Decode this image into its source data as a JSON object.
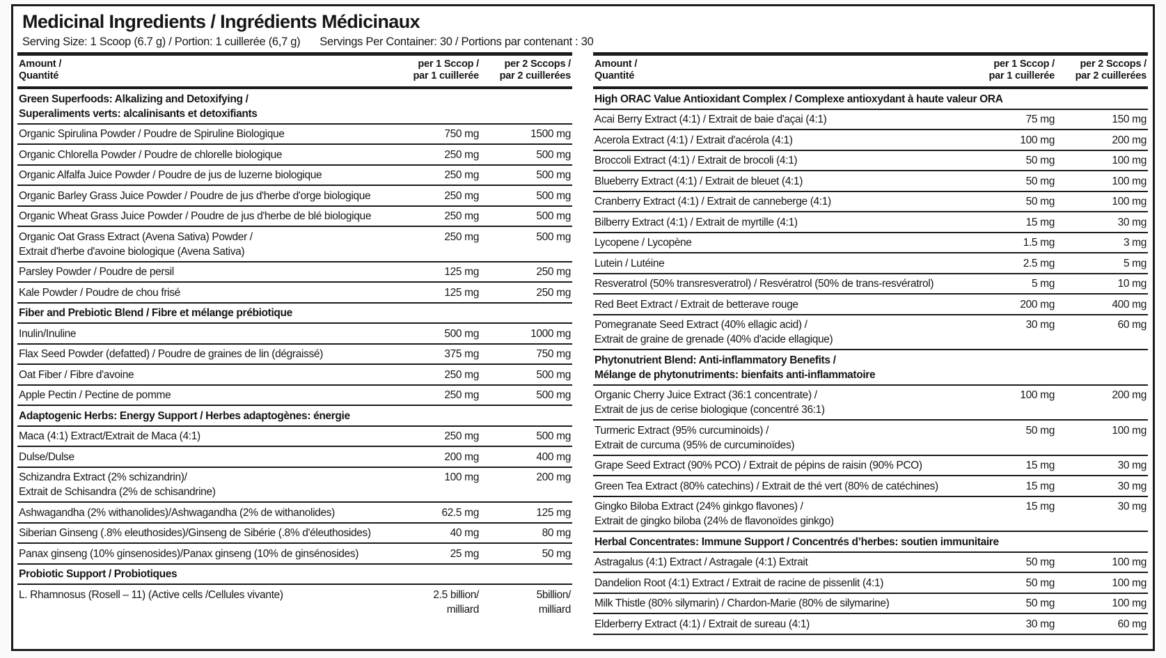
{
  "label": {
    "title": "Medicinal Ingredients / Ingrédients Médicinaux",
    "serving_size": "Serving Size: 1 Scoop (6.7 g) / Portion: 1 cuillerée (6,7 g)",
    "servings_per_container": "Servings Per Container: 30 / Portions par contenant : 30"
  },
  "column_headers": {
    "amount": [
      "Amount /",
      "Quantité"
    ],
    "per1": [
      "per 1 Sccop /",
      "par 1 cuillerée"
    ],
    "per2": [
      "per 2 Sccops /",
      "par 2 cuillerées"
    ]
  },
  "tables": {
    "left": [
      {
        "type": "section",
        "lines": [
          "Green Superfoods: Alkalizing and Detoxifying /",
          "Superaliments verts: alcalinisants et detoxifiants"
        ]
      },
      {
        "type": "ingredient",
        "lines": [
          "Organic Spirulina Powder / Poudre de Spiruline Biologique"
        ],
        "per1": [
          "750 mg"
        ],
        "per2": [
          "1500 mg"
        ]
      },
      {
        "type": "ingredient",
        "lines": [
          "Organic Chlorella Powder / Poudre de chlorelle biologique"
        ],
        "per1": [
          "250 mg"
        ],
        "per2": [
          "500 mg"
        ]
      },
      {
        "type": "ingredient",
        "lines": [
          "Organic Alfalfa Juice Powder / Poudre de jus de luzerne biologique"
        ],
        "per1": [
          "250 mg"
        ],
        "per2": [
          "500 mg"
        ]
      },
      {
        "type": "ingredient",
        "lines": [
          "Organic Barley Grass Juice Powder / Poudre de jus d'herbe d'orge biologique"
        ],
        "per1": [
          "250 mg"
        ],
        "per2": [
          "500 mg"
        ]
      },
      {
        "type": "ingredient",
        "lines": [
          "Organic Wheat Grass Juice Powder / Poudre de jus d'herbe de blé biologique"
        ],
        "per1": [
          "250 mg"
        ],
        "per2": [
          "500 mg"
        ]
      },
      {
        "type": "ingredient",
        "lines": [
          "Organic Oat Grass Extract (Avena Sativa) Powder /",
          "Extrait d'herbe d'avoine biologique (Avena Sativa)"
        ],
        "per1": [
          "250 mg"
        ],
        "per2": [
          "500 mg"
        ]
      },
      {
        "type": "ingredient",
        "lines": [
          "Parsley Powder / Poudre de persil"
        ],
        "per1": [
          "125 mg"
        ],
        "per2": [
          "250 mg"
        ]
      },
      {
        "type": "ingredient",
        "lines": [
          "Kale Powder / Poudre de chou frisé"
        ],
        "per1": [
          "125 mg"
        ],
        "per2": [
          "250 mg"
        ]
      },
      {
        "type": "section",
        "lines": [
          "Fiber and Prebiotic Blend / Fibre et mélange prébiotique"
        ]
      },
      {
        "type": "ingredient",
        "lines": [
          "Inulin/Inuline"
        ],
        "per1": [
          "500 mg"
        ],
        "per2": [
          "1000 mg"
        ]
      },
      {
        "type": "ingredient",
        "lines": [
          "Flax Seed Powder (defatted) / Poudre de graines de lin (dégraissé)"
        ],
        "per1": [
          "375 mg"
        ],
        "per2": [
          "750 mg"
        ]
      },
      {
        "type": "ingredient",
        "lines": [
          "Oat Fiber / Fibre d'avoine"
        ],
        "per1": [
          "250 mg"
        ],
        "per2": [
          "500 mg"
        ]
      },
      {
        "type": "ingredient",
        "lines": [
          "Apple Pectin / Pectine de pomme"
        ],
        "per1": [
          "250 mg"
        ],
        "per2": [
          "500 mg"
        ]
      },
      {
        "type": "section",
        "lines": [
          "Adaptogenic Herbs: Energy Support / Herbes adaptogènes: énergie"
        ]
      },
      {
        "type": "ingredient",
        "lines": [
          "Maca (4:1) Extract/Extrait de Maca (4:1)"
        ],
        "per1": [
          "250 mg"
        ],
        "per2": [
          "500 mg"
        ]
      },
      {
        "type": "ingredient",
        "lines": [
          "Dulse/Dulse"
        ],
        "per1": [
          "200 mg"
        ],
        "per2": [
          "400 mg"
        ]
      },
      {
        "type": "ingredient",
        "lines": [
          "Schizandra Extract (2% schizandrin)/",
          "Extrait de Schisandra (2% de schisandrine)"
        ],
        "per1": [
          "100 mg"
        ],
        "per2": [
          "200 mg"
        ]
      },
      {
        "type": "ingredient",
        "lines": [
          "Ashwagandha (2% withanolides)/Ashwagandha (2% de withanolides)"
        ],
        "per1": [
          "62.5 mg"
        ],
        "per2": [
          "125 mg"
        ]
      },
      {
        "type": "ingredient",
        "lines": [
          "Siberian Ginseng (.8% eleuthosides)/Ginseng de Sibérie (.8% d'éleuthosides)"
        ],
        "per1": [
          "40 mg"
        ],
        "per2": [
          "80 mg"
        ]
      },
      {
        "type": "ingredient",
        "lines": [
          "Panax ginseng (10% ginsenosides)/Panax ginseng (10% de ginsénosides)"
        ],
        "per1": [
          "25 mg"
        ],
        "per2": [
          "50 mg"
        ]
      },
      {
        "type": "section",
        "lines": [
          "Probiotic Support / Probiotiques"
        ]
      },
      {
        "type": "ingredient",
        "lines": [
          "L. Rhamnosus (Rosell – 11) (Active cells /Cellules vivante)"
        ],
        "per1": [
          "2.5 billion/",
          "milliard"
        ],
        "per2": [
          "5billion/",
          "milliard"
        ]
      }
    ],
    "right": [
      {
        "type": "section",
        "lines": [
          "High ORAC Value Antioxidant Complex / Complexe antioxydant à haute valeur ORA"
        ]
      },
      {
        "type": "ingredient",
        "lines": [
          "Acai Berry Extract (4:1) / Extrait de baie d'açai (4:1)"
        ],
        "per1": [
          "75 mg"
        ],
        "per2": [
          "150 mg"
        ]
      },
      {
        "type": "ingredient",
        "lines": [
          "Acerola Extract (4:1) / Extrait d'acérola (4:1)"
        ],
        "per1": [
          "100 mg"
        ],
        "per2": [
          "200 mg"
        ]
      },
      {
        "type": "ingredient",
        "lines": [
          "Broccoli Extract (4:1) / Extrait de brocoli (4:1)"
        ],
        "per1": [
          "50 mg"
        ],
        "per2": [
          "100 mg"
        ]
      },
      {
        "type": "ingredient",
        "lines": [
          "Blueberry Extract (4:1) / Extrait de bleuet (4:1)"
        ],
        "per1": [
          "50 mg"
        ],
        "per2": [
          "100 mg"
        ]
      },
      {
        "type": "ingredient",
        "lines": [
          "Cranberry Extract (4:1) / Extrait de canneberge (4:1)"
        ],
        "per1": [
          "50 mg"
        ],
        "per2": [
          "100 mg"
        ]
      },
      {
        "type": "ingredient",
        "lines": [
          "Bilberry Extract (4:1) / Extrait de myrtille (4:1)"
        ],
        "per1": [
          "15 mg"
        ],
        "per2": [
          "30 mg"
        ]
      },
      {
        "type": "ingredient",
        "lines": [
          "Lycopene / Lycopène"
        ],
        "per1": [
          "1.5 mg"
        ],
        "per2": [
          "3 mg"
        ]
      },
      {
        "type": "ingredient",
        "lines": [
          "Lutein / Lutéine"
        ],
        "per1": [
          "2.5 mg"
        ],
        "per2": [
          "5 mg"
        ]
      },
      {
        "type": "ingredient",
        "lines": [
          "Resveratrol (50% transresveratrol) / Resvératrol (50% de trans-resvératrol)"
        ],
        "per1": [
          "5 mg"
        ],
        "per2": [
          "10 mg"
        ]
      },
      {
        "type": "ingredient",
        "lines": [
          "Red Beet Extract / Extrait de betterave rouge"
        ],
        "per1": [
          "200 mg"
        ],
        "per2": [
          "400 mg"
        ]
      },
      {
        "type": "ingredient",
        "lines": [
          "Pomegranate Seed Extract (40% ellagic acid) /",
          "Extrait de graine de grenade (40% d'acide ellagique)"
        ],
        "per1": [
          "30 mg"
        ],
        "per2": [
          "60 mg"
        ]
      },
      {
        "type": "section",
        "lines": [
          "Phytonutrient Blend: Anti-inflammatory Benefits /",
          "Mélange de phytonutriments: bienfaits anti-inflammatoire"
        ]
      },
      {
        "type": "ingredient",
        "lines": [
          "Organic Cherry Juice Extract (36:1 concentrate) /",
          "Extrait de jus de cerise biologique (concentré 36:1)"
        ],
        "per1": [
          "100 mg"
        ],
        "per2": [
          "200 mg"
        ]
      },
      {
        "type": "ingredient",
        "lines": [
          "Turmeric Extract (95% curcuminoids) /",
          "Extrait de curcuma (95% de curcuminoïdes)"
        ],
        "per1": [
          "50 mg"
        ],
        "per2": [
          "100 mg"
        ]
      },
      {
        "type": "ingredient",
        "lines": [
          "Grape Seed Extract (90% PCO) / Extrait de pépins de raisin (90% PCO)"
        ],
        "per1": [
          "15 mg"
        ],
        "per2": [
          "30 mg"
        ]
      },
      {
        "type": "ingredient",
        "lines": [
          "Green Tea Extract (80% catechins) / Extrait de thé vert (80% de catéchines)"
        ],
        "per1": [
          "15 mg"
        ],
        "per2": [
          "30 mg"
        ]
      },
      {
        "type": "ingredient",
        "lines": [
          "Gingko Biloba Extract (24% ginkgo flavones) /",
          "Extrait de gingko biloba (24% de flavonoïdes ginkgo)"
        ],
        "per1": [
          "15 mg"
        ],
        "per2": [
          "30 mg"
        ]
      },
      {
        "type": "section",
        "lines": [
          "Herbal Concentrates: Immune Support / Concentrés d’herbes: soutien immunitaire"
        ]
      },
      {
        "type": "ingredient",
        "lines": [
          "Astragalus (4:1) Extract / Astragale (4:1) Extrait"
        ],
        "per1": [
          "50 mg"
        ],
        "per2": [
          "100 mg"
        ]
      },
      {
        "type": "ingredient",
        "lines": [
          "Dandelion Root (4:1) Extract / Extrait de racine de pissenlit (4:1)"
        ],
        "per1": [
          "50 mg"
        ],
        "per2": [
          "100 mg"
        ]
      },
      {
        "type": "ingredient",
        "lines": [
          "Milk Thistle (80% silymarin) / Chardon-Marie (80% de silymarine)"
        ],
        "per1": [
          "50 mg"
        ],
        "per2": [
          "100 mg"
        ]
      },
      {
        "type": "ingredient",
        "lines": [
          "Elderberry Extract (4:1) / Extrait de sureau (4:1)"
        ],
        "per1": [
          "30 mg"
        ],
        "per2": [
          "60 mg"
        ]
      }
    ]
  }
}
